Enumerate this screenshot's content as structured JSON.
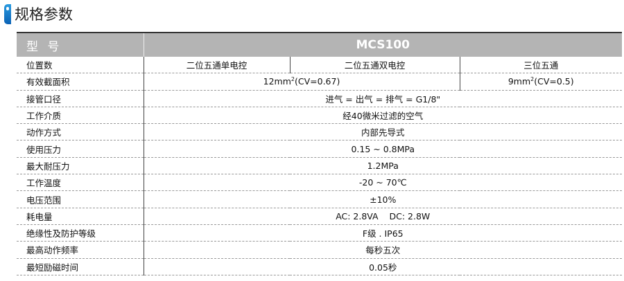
{
  "title": "规格参数",
  "header": {
    "label": "型 号",
    "model": "MCS100"
  },
  "rows": [
    {
      "label": "位置数",
      "cells": [
        "二位五通单电控",
        "二位五通双电控",
        "三位五通"
      ]
    },
    {
      "label": "有效截面积",
      "cells": [
        "12mm",
        "(CV=0.67)",
        "9mm",
        "(CV=0.5)"
      ],
      "sup": "2"
    },
    {
      "label": "接管口径",
      "value": "进气 = 出气 = 排气 = G1/8\""
    },
    {
      "label": "工作介质",
      "value": "经40微米过滤的空气"
    },
    {
      "label": "动作方式",
      "value": "内部先导式"
    },
    {
      "label": "使用压力",
      "value": "0.15 ~ 0.8MPa"
    },
    {
      "label": "最大耐压力",
      "value": "1.2MPa"
    },
    {
      "label": "工作温度",
      "value": "-20 ~ 70℃"
    },
    {
      "label": "电压范围",
      "value": "±10%"
    },
    {
      "label": "耗电量",
      "value": "AC: 2.8VA    DC: 2.8W"
    },
    {
      "label": "绝缘性及防护等级",
      "value": "F级 . IP65"
    },
    {
      "label": "最高动作频率",
      "value": "每秒五次"
    },
    {
      "label": "最短励磁时间",
      "value": "0.05秒"
    }
  ]
}
